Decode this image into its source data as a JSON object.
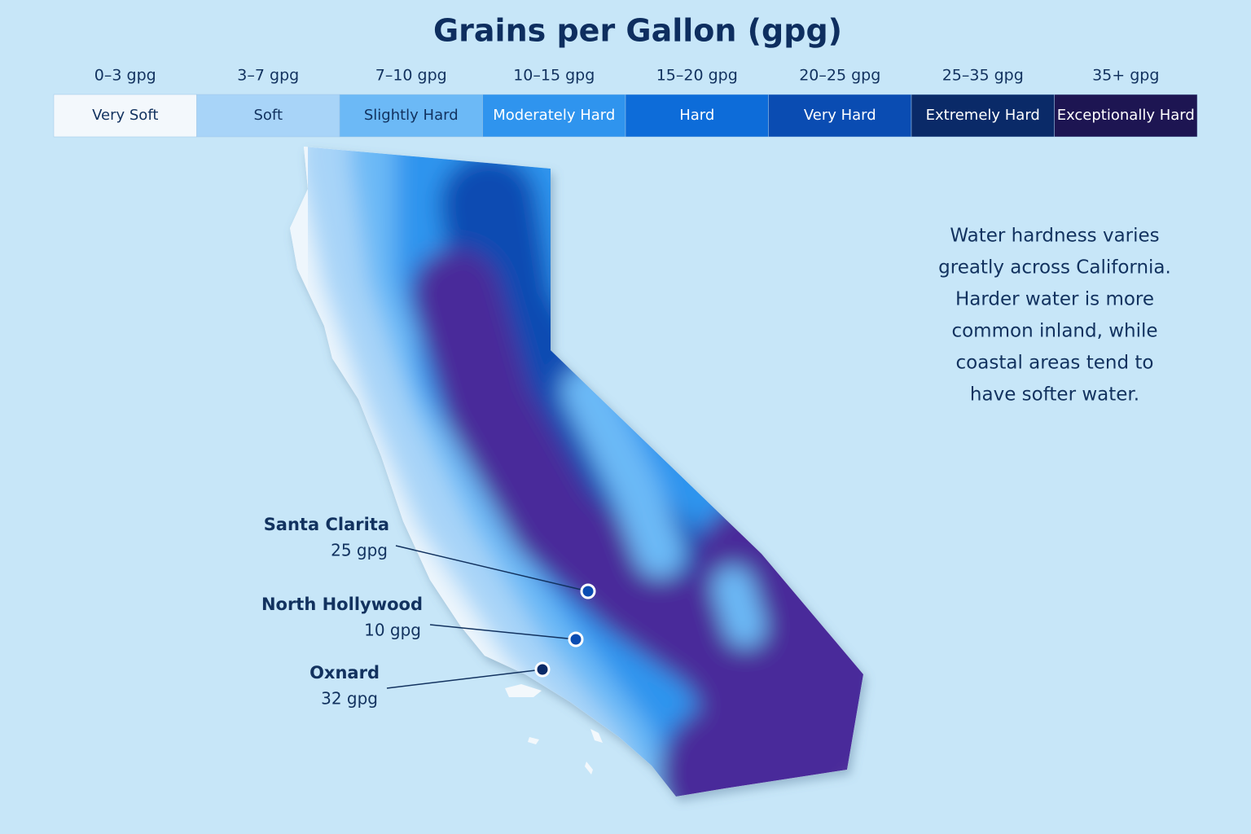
{
  "title": "Grains per Gallon (gpg)",
  "legend": [
    {
      "range": "0–3 gpg",
      "label": "Very Soft",
      "color": "#f3f8fc",
      "text_color": "#12325f"
    },
    {
      "range": "3–7 gpg",
      "label": "Soft",
      "color": "#a8d4f8",
      "text_color": "#12325f"
    },
    {
      "range": "7–10 gpg",
      "label": "Slightly Hard",
      "color": "#6cb9f6",
      "text_color": "#12325f"
    },
    {
      "range": "10–15 gpg",
      "label": "Moderately Hard",
      "color": "#2f94ee",
      "text_color": "#ffffff"
    },
    {
      "range": "15–20 gpg",
      "label": "Hard",
      "color": "#0d6cd9",
      "text_color": "#ffffff"
    },
    {
      "range": "20–25 gpg",
      "label": "Very Hard",
      "color": "#0a4cb2",
      "text_color": "#ffffff"
    },
    {
      "range": "25–35 gpg",
      "label": "Extremely Hard",
      "color": "#0a2a68",
      "text_color": "#ffffff"
    },
    {
      "range": "35+ gpg",
      "label": "Exceptionally Hard",
      "color": "#1d1552",
      "text_color": "#ffffff"
    }
  ],
  "description": [
    "Water hardness varies",
    "greatly across California.",
    "Harder water is more",
    "common inland, while",
    "coastal areas tend to",
    "have softer water."
  ],
  "callouts": [
    {
      "name": "Santa Clarita",
      "value": "25 gpg"
    },
    {
      "name": "North Hollywood",
      "value": "10 gpg"
    },
    {
      "name": "Oxnard",
      "value": "32 gpg"
    }
  ]
}
